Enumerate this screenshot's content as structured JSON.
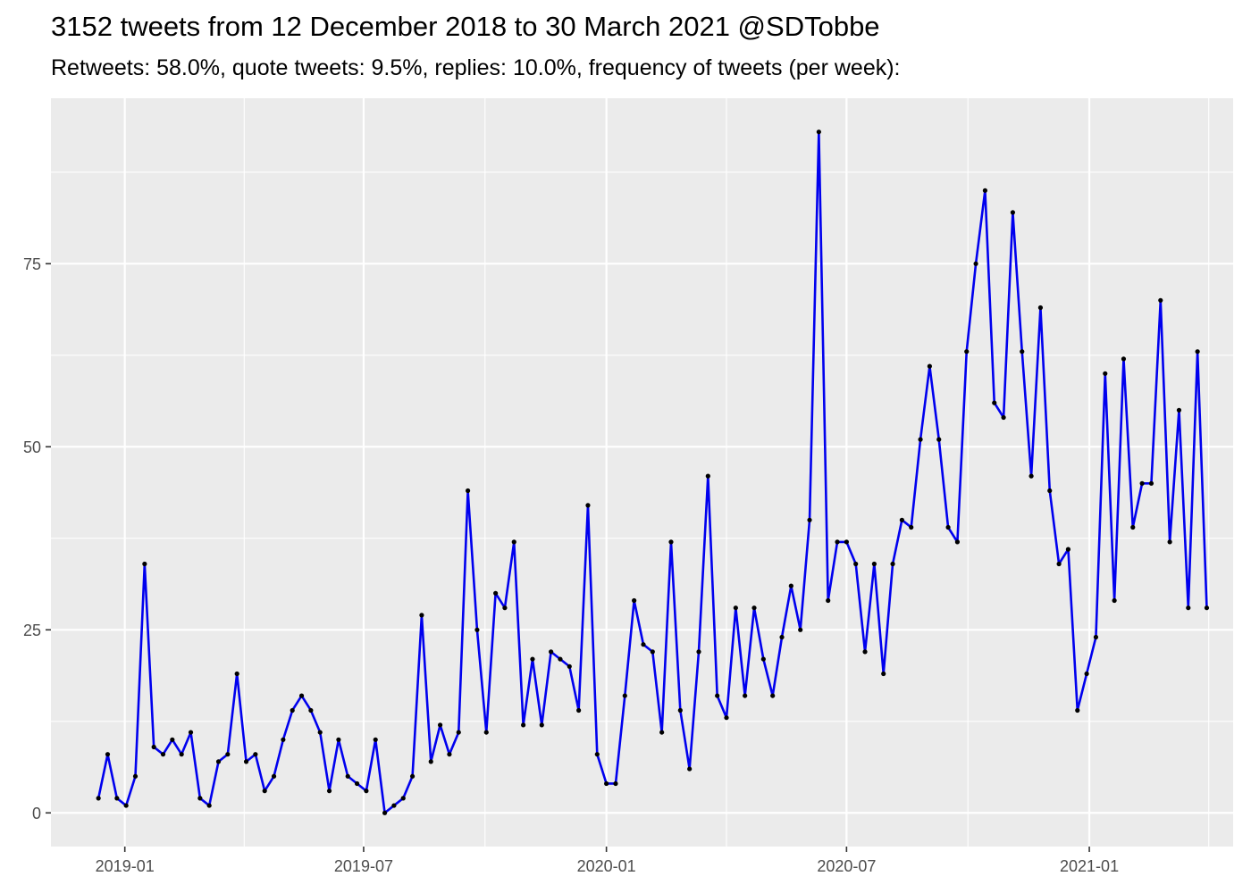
{
  "chart_data": {
    "type": "line",
    "title": "3152 tweets from 12 December 2018 to 30 March 2021 @SDTobbe",
    "subtitle": "Retweets: 58.0%, quote tweets: 9.5%, replies: 10.0%, frequency of tweets (per week):",
    "xlabel": "",
    "ylabel": "",
    "x_start_date": "2018-12-12",
    "x_range": [
      "2018-11-06",
      "2021-04-20"
    ],
    "ylim": [
      -4.6,
      97.6
    ],
    "x_ticks": [
      {
        "date": "2019-01-01",
        "label": "2019-01"
      },
      {
        "date": "2019-07-01",
        "label": "2019-07"
      },
      {
        "date": "2020-01-01",
        "label": "2020-01"
      },
      {
        "date": "2020-07-01",
        "label": "2020-07"
      },
      {
        "date": "2021-01-01",
        "label": "2021-01"
      }
    ],
    "y_ticks": [
      0,
      25,
      50,
      75
    ],
    "grid": true,
    "line_color": "#0000ee",
    "point_color": "#000000",
    "panel_background": "#ebebeb",
    "series": [
      {
        "values": [
          2,
          8,
          2,
          1,
          5,
          34,
          9,
          8,
          10,
          8,
          11,
          2,
          1,
          7,
          8,
          19,
          7,
          8,
          3,
          5,
          10,
          14,
          16,
          14,
          11,
          3,
          10,
          5,
          4,
          3,
          10,
          0,
          1,
          2,
          5,
          27,
          7,
          12,
          8,
          11,
          44,
          25,
          11,
          30,
          28,
          37,
          12,
          21,
          12,
          22,
          21,
          20,
          14,
          42,
          8,
          4,
          4,
          16,
          29,
          23,
          22,
          11,
          37,
          14,
          6,
          22,
          46,
          16,
          13,
          28,
          16,
          28,
          21,
          16,
          24,
          31,
          25,
          40,
          93,
          29,
          37,
          37,
          34,
          22,
          34,
          19,
          34,
          40,
          39,
          51,
          61,
          51,
          39,
          37,
          63,
          75,
          85,
          56,
          54,
          82,
          63,
          46,
          69,
          44,
          34,
          36,
          14,
          19,
          24,
          60,
          29,
          62,
          39,
          45,
          45,
          70,
          37,
          55,
          28,
          63,
          28
        ]
      }
    ]
  }
}
